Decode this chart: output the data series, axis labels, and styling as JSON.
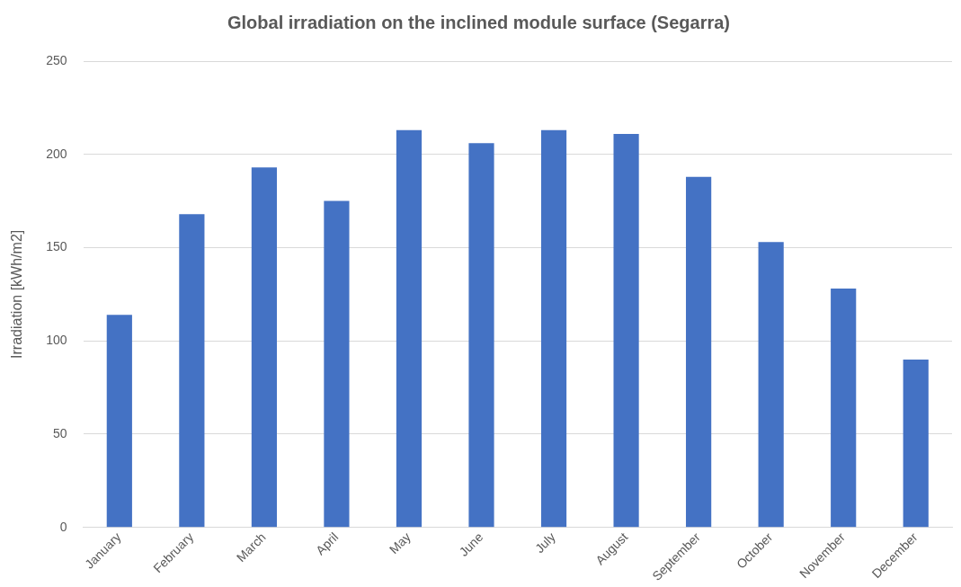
{
  "chart_data": {
    "type": "bar",
    "title": "Global irradiation on the inclined module surface (Segarra)",
    "ylabel": "Irradiation [kWh/m2]",
    "categories": [
      "January",
      "February",
      "March",
      "April",
      "May",
      "June",
      "July",
      "August",
      "September",
      "October",
      "November",
      "December"
    ],
    "values": [
      114,
      168,
      193,
      175,
      213,
      206,
      213,
      211,
      188,
      153,
      128,
      90
    ],
    "color": "#4472c4",
    "ylim": [
      0,
      250
    ],
    "yticks": [
      0,
      50,
      100,
      150,
      200,
      250
    ],
    "grid": "y"
  }
}
